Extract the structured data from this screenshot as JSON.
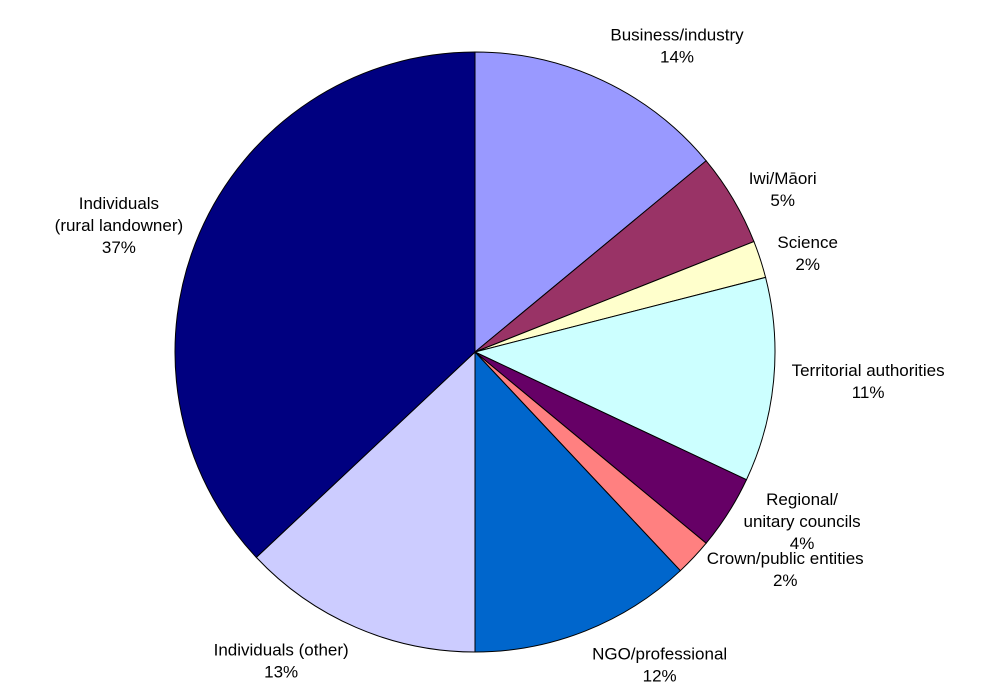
{
  "chart_data": {
    "type": "pie",
    "categories": [
      "Business/industry",
      "Iwi/Māori",
      "Science",
      "Territorial authorities",
      "Regional/\nunitary councils",
      "Crown/public entities",
      "NGO/professional",
      "Individuals (other)",
      "Individuals\n(rural landowner)"
    ],
    "values": [
      14,
      5,
      2,
      11,
      4,
      2,
      12,
      13,
      37
    ],
    "value_labels": [
      "14%",
      "5%",
      "2%",
      "11%",
      "4%",
      "2%",
      "12%",
      "13%",
      "37%"
    ],
    "colors": [
      "#9999ff",
      "#993366",
      "#ffffcc",
      "#ccffff",
      "#660066",
      "#ff8080",
      "#0066cc",
      "#ccccff",
      "#000080"
    ]
  }
}
